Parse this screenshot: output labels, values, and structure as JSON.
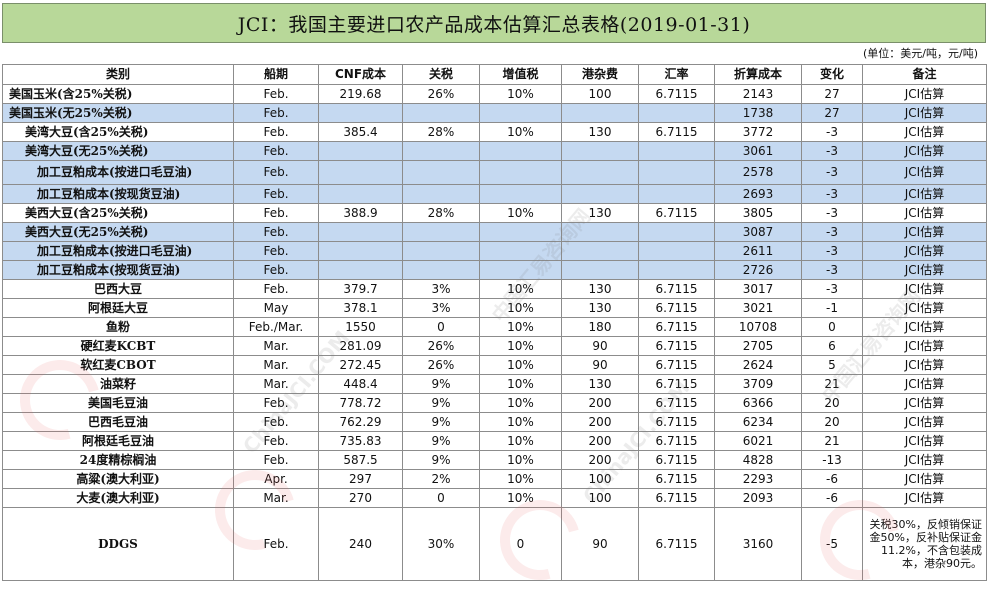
{
  "title": "JCI：我国主要进口农产品成本估算汇总表格(2019-01-31)",
  "unit_note": "(单位：美元/吨，元/吨)",
  "headers": [
    "类别",
    "船期",
    "CNF成本",
    "关税",
    "增值税",
    "港杂费",
    "汇率",
    "折算成本",
    "变化",
    "备注"
  ],
  "rows": [
    {
      "name": "美国玉米(含25%关税)",
      "ship": "Feb.",
      "cnf": "219.68",
      "tariff": "26%",
      "vat": "10%",
      "port": "100",
      "fx": "6.7115",
      "cost": "2143",
      "chg": "27",
      "note": "JCI估算"
    },
    {
      "name": "美国玉米(无25%关税)",
      "ship": "Feb.",
      "cnf": "",
      "tariff": "",
      "vat": "",
      "port": "",
      "fx": "",
      "cost": "1738",
      "chg": "27",
      "note": "JCI估算"
    },
    {
      "name": "美湾大豆(含25%关税)",
      "ship": "Feb.",
      "cnf": "385.4",
      "tariff": "28%",
      "vat": "10%",
      "port": "130",
      "fx": "6.7115",
      "cost": "3772",
      "chg": "-3",
      "note": "JCI估算"
    },
    {
      "name": "美湾大豆(无25%关税)",
      "ship": "Feb.",
      "cnf": "",
      "tariff": "",
      "vat": "",
      "port": "",
      "fx": "",
      "cost": "3061",
      "chg": "-3",
      "note": "JCI估算"
    },
    {
      "name": "加工豆粕成本(按进口毛豆油)",
      "ship": "Feb.",
      "cnf": "",
      "tariff": "",
      "vat": "",
      "port": "",
      "fx": "",
      "cost": "2578",
      "chg": "-3",
      "note": "JCI估算"
    },
    {
      "name": "加工豆粕成本(按现货豆油)",
      "ship": "Feb.",
      "cnf": "",
      "tariff": "",
      "vat": "",
      "port": "",
      "fx": "",
      "cost": "2693",
      "chg": "-3",
      "note": "JCI估算"
    },
    {
      "name": "美西大豆(含25%关税)",
      "ship": "Feb.",
      "cnf": "388.9",
      "tariff": "28%",
      "vat": "10%",
      "port": "130",
      "fx": "6.7115",
      "cost": "3805",
      "chg": "-3",
      "note": "JCI估算"
    },
    {
      "name": "美西大豆(无25%关税)",
      "ship": "Feb.",
      "cnf": "",
      "tariff": "",
      "vat": "",
      "port": "",
      "fx": "",
      "cost": "3087",
      "chg": "-3",
      "note": "JCI估算"
    },
    {
      "name": "加工豆粕成本(按进口毛豆油)",
      "ship": "Feb.",
      "cnf": "",
      "tariff": "",
      "vat": "",
      "port": "",
      "fx": "",
      "cost": "2611",
      "chg": "-3",
      "note": "JCI估算"
    },
    {
      "name": "加工豆粕成本(按现货豆油)",
      "ship": "Feb.",
      "cnf": "",
      "tariff": "",
      "vat": "",
      "port": "",
      "fx": "",
      "cost": "2726",
      "chg": "-3",
      "note": "JCI估算"
    },
    {
      "name": "巴西大豆",
      "ship": "Feb.",
      "cnf": "379.7",
      "tariff": "3%",
      "vat": "10%",
      "port": "130",
      "fx": "6.7115",
      "cost": "3017",
      "chg": "-3",
      "note": "JCI估算"
    },
    {
      "name": "阿根廷大豆",
      "ship": "May",
      "cnf": "378.1",
      "tariff": "3%",
      "vat": "10%",
      "port": "130",
      "fx": "6.7115",
      "cost": "3021",
      "chg": "-1",
      "note": "JCI估算"
    },
    {
      "name": "鱼粉",
      "ship": "Feb./Mar.",
      "cnf": "1550",
      "tariff": "0",
      "vat": "10%",
      "port": "180",
      "fx": "6.7115",
      "cost": "10708",
      "chg": "0",
      "note": "JCI估算"
    },
    {
      "name": "硬红麦KCBT",
      "ship": "Mar.",
      "cnf": "281.09",
      "tariff": "26%",
      "vat": "10%",
      "port": "90",
      "fx": "6.7115",
      "cost": "2705",
      "chg": "6",
      "note": "JCI估算"
    },
    {
      "name": "软红麦CBOT",
      "ship": "Mar.",
      "cnf": "272.45",
      "tariff": "26%",
      "vat": "10%",
      "port": "90",
      "fx": "6.7115",
      "cost": "2624",
      "chg": "5",
      "note": "JCI估算"
    },
    {
      "name": "油菜籽",
      "ship": "Mar.",
      "cnf": "448.4",
      "tariff": "9%",
      "vat": "10%",
      "port": "130",
      "fx": "6.7115",
      "cost": "3709",
      "chg": "21",
      "note": "JCI估算"
    },
    {
      "name": "美国毛豆油",
      "ship": "Feb.",
      "cnf": "778.72",
      "tariff": "9%",
      "vat": "10%",
      "port": "200",
      "fx": "6.7115",
      "cost": "6366",
      "chg": "20",
      "note": "JCI估算"
    },
    {
      "name": "巴西毛豆油",
      "ship": "Feb.",
      "cnf": "762.29",
      "tariff": "9%",
      "vat": "10%",
      "port": "200",
      "fx": "6.7115",
      "cost": "6234",
      "chg": "20",
      "note": "JCI估算"
    },
    {
      "name": "阿根廷毛豆油",
      "ship": "Feb.",
      "cnf": "735.83",
      "tariff": "9%",
      "vat": "10%",
      "port": "200",
      "fx": "6.7115",
      "cost": "6021",
      "chg": "21",
      "note": "JCI估算"
    },
    {
      "name": "24度精棕榈油",
      "ship": "Feb.",
      "cnf": "587.5",
      "tariff": "9%",
      "vat": "10%",
      "port": "200",
      "fx": "6.7115",
      "cost": "4828",
      "chg": "-13",
      "note": "JCI估算"
    },
    {
      "name": "高粱(澳大利亚)",
      "ship": "Apr.",
      "cnf": "297",
      "tariff": "2%",
      "vat": "10%",
      "port": "100",
      "fx": "6.7115",
      "cost": "2293",
      "chg": "-6",
      "note": "JCI估算"
    },
    {
      "name": "大麦(澳大利亚)",
      "ship": "Mar.",
      "cnf": "270",
      "tariff": "0",
      "vat": "10%",
      "port": "100",
      "fx": "6.7115",
      "cost": "2093",
      "chg": "-6",
      "note": "JCI估算"
    },
    {
      "name": "DDGS",
      "ship": "Feb.",
      "cnf": "240",
      "tariff": "30%",
      "vat": "0",
      "port": "90",
      "fx": "6.7115",
      "cost": "3160",
      "chg": "-5",
      "note": "关税30%，反倾销保证金50%，反补贴保证金11.2%，不含包装成本，港杂90元。"
    }
  ],
  "watermark": {
    "text_cn": "中国汇易咨询网",
    "text_en": "ChinaJCI.COM"
  },
  "colors": {
    "title_bg": "#b8d899",
    "blue_row": "#c5d9f1",
    "border": "#8c8c8c"
  }
}
